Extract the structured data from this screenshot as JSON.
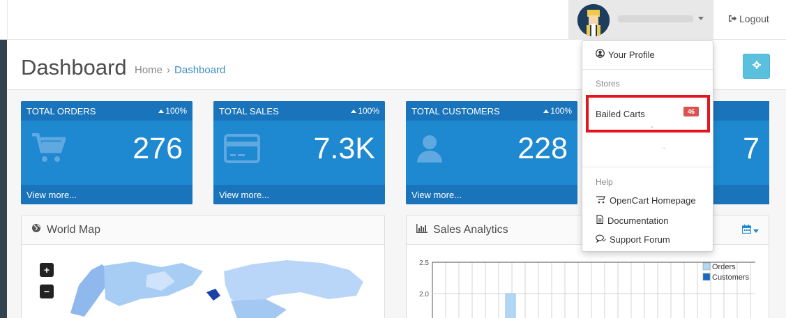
{
  "header": {
    "logout_label": "Logout",
    "logout_icon": "sign-out-icon"
  },
  "page": {
    "title": "Dashboard",
    "breadcrumb": [
      "Home",
      "Dashboard"
    ],
    "breadcrumb_separator": "›"
  },
  "tiles": [
    {
      "title": "TOTAL ORDERS",
      "percent": "100%",
      "value": "276",
      "footer": "View more...",
      "icon": "shopping-cart-icon"
    },
    {
      "title": "TOTAL SALES",
      "percent": "100%",
      "value": "7.3K",
      "footer": "View more...",
      "icon": "credit-card-icon"
    },
    {
      "title": "TOTAL CUSTOMERS",
      "percent": "100%",
      "value": "228",
      "footer": "View more...",
      "icon": "user-icon"
    },
    {
      "value": "7"
    }
  ],
  "panels": {
    "map": {
      "title": "World Map",
      "icon": "globe-icon",
      "zoom_in": "+",
      "zoom_out": "−"
    },
    "analytics": {
      "title": "Sales Analytics",
      "icon": "bar-chart-icon"
    }
  },
  "dropdown": {
    "profile": "Your Profile",
    "stores_header": "Stores",
    "bailed_carts": "Bailed Carts",
    "bailed_badge": "46",
    "help_header": "Help",
    "homepage": "OpenCart Homepage",
    "documentation": "Documentation",
    "support": "Support Forum"
  },
  "colors": {
    "tile": "#1e88d0",
    "tile_dark": "#1a74bb",
    "highlight": "#e3141c",
    "badge": "#d9534f",
    "settings": "#5bc0de"
  },
  "chart_data": {
    "type": "bar",
    "y_ticks": [
      "2.5",
      "2.0"
    ],
    "ylim": [
      0,
      2.5
    ],
    "series": [
      {
        "name": "Orders",
        "color": "#b2d7f5",
        "values": [
          2.0
        ]
      },
      {
        "name": "Customers",
        "color": "#1669c3",
        "values": []
      }
    ],
    "grid": true,
    "legend": "top-right"
  }
}
